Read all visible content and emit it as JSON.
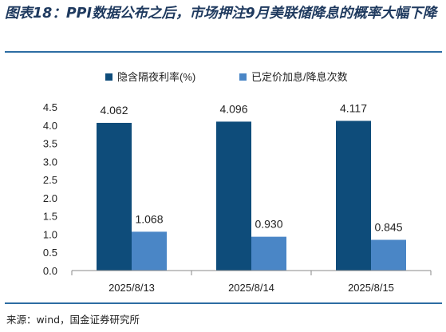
{
  "title": "图表18：PPI数据公布之后，市场押注9月美联储降息的概率大幅下降",
  "source": "来源：wind，国金证券研究所",
  "colors": {
    "series1": "#0e4c7a",
    "series2": "#4a86c6",
    "axis": "#888888",
    "rule": "#2d6da3"
  },
  "chart_data": {
    "type": "bar",
    "categories": [
      "2025/8/13",
      "2025/8/14",
      "2025/8/15"
    ],
    "series": [
      {
        "name": "隐含隔夜利率(%)",
        "values": [
          4.062,
          4.096,
          4.117
        ],
        "labels": [
          "4.062",
          "4.096",
          "4.117"
        ]
      },
      {
        "name": "已定价加息/降息次数",
        "values": [
          1.068,
          0.93,
          0.845
        ],
        "labels": [
          "1.068",
          "0.930",
          "0.845"
        ]
      }
    ],
    "ylim": [
      0,
      4.5
    ],
    "yticks": [
      "0.0",
      "0.5",
      "1.0",
      "1.5",
      "2.0",
      "2.5",
      "3.0",
      "3.5",
      "4.0",
      "4.5"
    ],
    "legend_position": "top",
    "grid": false
  }
}
